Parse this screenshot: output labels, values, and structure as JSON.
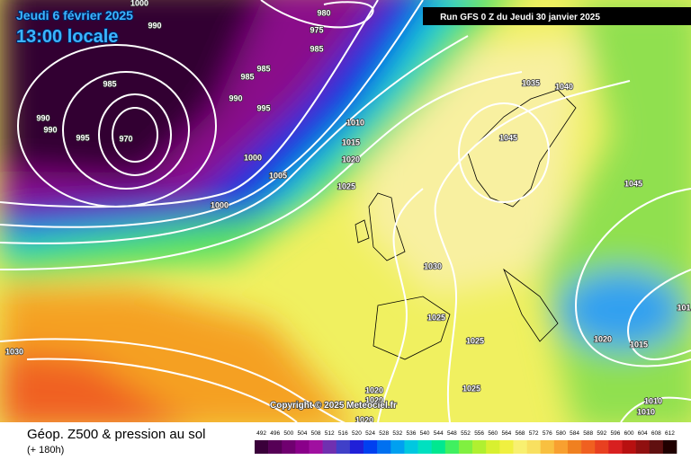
{
  "header": {
    "date": "Jeudi 6 février 2025",
    "time": "13:00 locale",
    "run": "Run GFS 0 Z du Jeudi 30 janvier 2025"
  },
  "copyright": "Copyright © 2025 Meteociel.fr",
  "isobar_labels": [
    1000,
    990,
    980,
    975,
    985,
    985,
    985,
    985,
    990,
    995,
    990,
    990,
    995,
    970,
    1010,
    1015,
    1020,
    1000,
    1005,
    1025,
    1000,
    1035,
    1040,
    1045,
    1045,
    1030,
    1025,
    1025,
    1020,
    1015,
    1030,
    1025,
    1020,
    1020,
    1020,
    1010,
    1010,
    101
  ],
  "legend": {
    "title": "Géop. Z500 & pression au sol",
    "lead": "(+ 180h)",
    "ticks": [
      492,
      496,
      500,
      504,
      508,
      512,
      516,
      520,
      524,
      528,
      532,
      536,
      540,
      544,
      548,
      552,
      556,
      560,
      564,
      568,
      572,
      576,
      580,
      584,
      588,
      592,
      596,
      600,
      604,
      608,
      612
    ],
    "colors": [
      "#3a003a",
      "#560056",
      "#700070",
      "#8a008a",
      "#a010a0",
      "#7030b0",
      "#4040c8",
      "#2020d8",
      "#0040f0",
      "#0070f0",
      "#00a0f0",
      "#00c8e0",
      "#00e0c0",
      "#00e890",
      "#40f060",
      "#80f040",
      "#b0f030",
      "#d8f030",
      "#f0f040",
      "#f8f070",
      "#f8e060",
      "#f8c040",
      "#f8a030",
      "#f08020",
      "#f06020",
      "#e84020",
      "#d82020",
      "#b81010",
      "#901010",
      "#601010",
      "#200000"
    ]
  }
}
